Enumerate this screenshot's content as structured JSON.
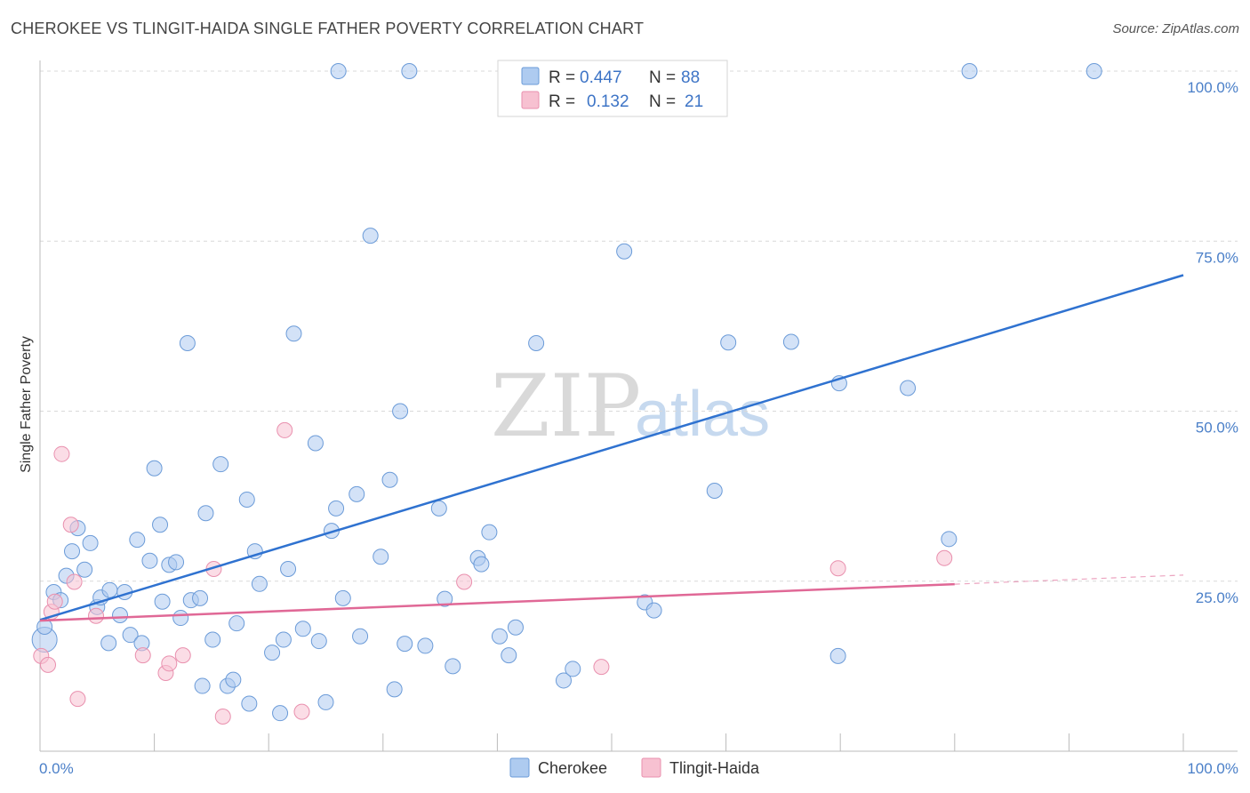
{
  "title": "CHEROKEE VS TLINGIT-HAIDA SINGLE FATHER POVERTY CORRELATION CHART",
  "source": "Source: ZipAtlas.com",
  "watermark": {
    "zip": "ZIP",
    "atlas": "atlas"
  },
  "colors": {
    "cherokee_fill": "#aecbf0",
    "cherokee_stroke": "#6b9bd8",
    "cherokee_line": "#2f72d0",
    "tlingit_fill": "#f7c1d1",
    "tlingit_stroke": "#e990ae",
    "tlingit_line": "#e06896",
    "grid": "#d9d9d9",
    "tick_label": "#4a7fc8"
  },
  "legend": {
    "rows": [
      {
        "r_label": "R =",
        "r_value": "0.447",
        "n_label": "N =",
        "n_value": "88"
      },
      {
        "r_label": "R =",
        "r_value": "0.132",
        "n_label": "N =",
        "n_value": "21"
      }
    ]
  },
  "chart_data": {
    "type": "scatter",
    "xlabel": "",
    "ylabel": "Single Father Poverty",
    "xlim": [
      0,
      100
    ],
    "ylim": [
      0,
      100
    ],
    "x_tick_labels": [
      "0.0%",
      "100.0%"
    ],
    "y_ticks": [
      {
        "value": 25,
        "label": "25.0%"
      },
      {
        "value": 50,
        "label": "50.0%"
      },
      {
        "value": 75,
        "label": "75.0%"
      },
      {
        "value": 100,
        "label": "100.0%"
      }
    ],
    "grid": "horizontal-dashed",
    "legend_placement": "top-center",
    "series": [
      {
        "name": "Cherokee",
        "trend": {
          "x": [
            0,
            100
          ],
          "y": [
            19.3,
            70.0
          ],
          "dashed_from": null
        },
        "points": [
          [
            0.4,
            16.4
          ],
          [
            0.4,
            18.3
          ],
          [
            1.2,
            23.4
          ],
          [
            1.8,
            22.2
          ],
          [
            2.3,
            25.8
          ],
          [
            2.8,
            29.4
          ],
          [
            3.3,
            32.8
          ],
          [
            3.9,
            26.7
          ],
          [
            4.4,
            30.6
          ],
          [
            5.0,
            21.2
          ],
          [
            5.3,
            22.6
          ],
          [
            6.1,
            23.7
          ],
          [
            6.0,
            15.9
          ],
          [
            7.0,
            20.0
          ],
          [
            7.4,
            23.4
          ],
          [
            7.9,
            17.1
          ],
          [
            8.5,
            31.1
          ],
          [
            8.9,
            15.9
          ],
          [
            9.6,
            28.0
          ],
          [
            10.0,
            41.6
          ],
          [
            10.5,
            33.3
          ],
          [
            10.7,
            22.0
          ],
          [
            11.3,
            27.4
          ],
          [
            11.9,
            27.8
          ],
          [
            12.3,
            19.6
          ],
          [
            12.9,
            60.0
          ],
          [
            13.2,
            22.2
          ],
          [
            14.0,
            22.5
          ],
          [
            14.2,
            9.6
          ],
          [
            14.5,
            35.0
          ],
          [
            15.1,
            16.4
          ],
          [
            15.8,
            42.2
          ],
          [
            16.4,
            9.6
          ],
          [
            16.9,
            10.5
          ],
          [
            17.2,
            18.8
          ],
          [
            18.1,
            37.0
          ],
          [
            18.3,
            7.0
          ],
          [
            18.8,
            29.4
          ],
          [
            19.2,
            24.6
          ],
          [
            20.3,
            14.5
          ],
          [
            21.0,
            5.6
          ],
          [
            21.3,
            16.4
          ],
          [
            21.7,
            26.8
          ],
          [
            22.2,
            61.4
          ],
          [
            23.0,
            18.0
          ],
          [
            24.1,
            45.3
          ],
          [
            24.4,
            16.2
          ],
          [
            25.0,
            7.2
          ],
          [
            25.5,
            32.4
          ],
          [
            25.9,
            35.7
          ],
          [
            26.1,
            100.0
          ],
          [
            26.5,
            22.5
          ],
          [
            27.7,
            37.8
          ],
          [
            28.0,
            16.9
          ],
          [
            28.9,
            75.8
          ],
          [
            29.8,
            28.6
          ],
          [
            30.6,
            39.9
          ],
          [
            31.0,
            9.1
          ],
          [
            31.5,
            50.0
          ],
          [
            31.9,
            15.8
          ],
          [
            32.3,
            100.0
          ],
          [
            33.7,
            15.5
          ],
          [
            34.9,
            35.7
          ],
          [
            35.4,
            22.4
          ],
          [
            36.1,
            12.5
          ],
          [
            38.3,
            28.4
          ],
          [
            38.6,
            27.5
          ],
          [
            39.3,
            32.2
          ],
          [
            40.2,
            16.9
          ],
          [
            41.0,
            14.1
          ],
          [
            41.6,
            18.2
          ],
          [
            43.4,
            60.0
          ],
          [
            45.8,
            10.4
          ],
          [
            46.6,
            12.1
          ],
          [
            48.0,
            98.0
          ],
          [
            51.1,
            73.5
          ],
          [
            52.6,
            100.0
          ],
          [
            52.9,
            21.9
          ],
          [
            53.7,
            20.7
          ],
          [
            59.0,
            38.3
          ],
          [
            60.2,
            60.1
          ],
          [
            65.7,
            60.2
          ],
          [
            69.8,
            14.0
          ],
          [
            69.9,
            54.1
          ],
          [
            75.9,
            53.4
          ],
          [
            79.5,
            31.2
          ],
          [
            81.3,
            100.0
          ],
          [
            92.2,
            100.0
          ]
        ]
      },
      {
        "name": "Tlingit-Haida",
        "trend": {
          "x": [
            0,
            100
          ],
          "y": [
            19.2,
            25.9
          ],
          "dashed_from": 80.0
        },
        "points": [
          [
            0.1,
            14.0
          ],
          [
            0.7,
            12.7
          ],
          [
            1.0,
            20.5
          ],
          [
            1.3,
            22.0
          ],
          [
            1.9,
            43.7
          ],
          [
            2.7,
            33.3
          ],
          [
            3.0,
            24.9
          ],
          [
            3.3,
            7.7
          ],
          [
            4.9,
            19.9
          ],
          [
            9.0,
            14.1
          ],
          [
            11.0,
            11.5
          ],
          [
            11.3,
            12.9
          ],
          [
            12.5,
            14.1
          ],
          [
            15.2,
            26.8
          ],
          [
            16.0,
            5.1
          ],
          [
            21.4,
            47.2
          ],
          [
            22.9,
            5.8
          ],
          [
            37.1,
            24.9
          ],
          [
            49.1,
            12.4
          ],
          [
            69.8,
            26.9
          ],
          [
            79.1,
            28.4
          ]
        ]
      }
    ]
  }
}
